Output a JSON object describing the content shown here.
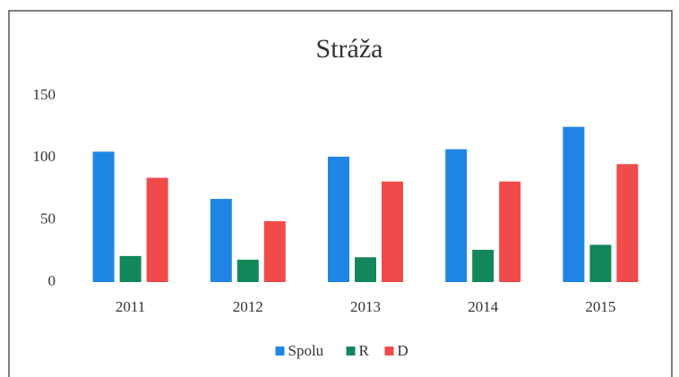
{
  "chart_data": {
    "type": "bar",
    "title": "Stráža",
    "categories": [
      "2011",
      "2012",
      "2013",
      "2014",
      "2015"
    ],
    "series": [
      {
        "name": "Spolu",
        "color": "#1f86e6",
        "values": [
          105,
          67,
          101,
          107,
          125
        ]
      },
      {
        "name": "R",
        "color": "#13875a",
        "values": [
          21,
          18,
          20,
          26,
          30
        ]
      },
      {
        "name": "D",
        "color": "#f04a4a",
        "values": [
          84,
          49,
          81,
          81,
          95
        ]
      }
    ],
    "ylim": [
      0,
      150
    ],
    "yticks": [
      0,
      50,
      100,
      150
    ],
    "grid": false,
    "legend": "bottom"
  }
}
